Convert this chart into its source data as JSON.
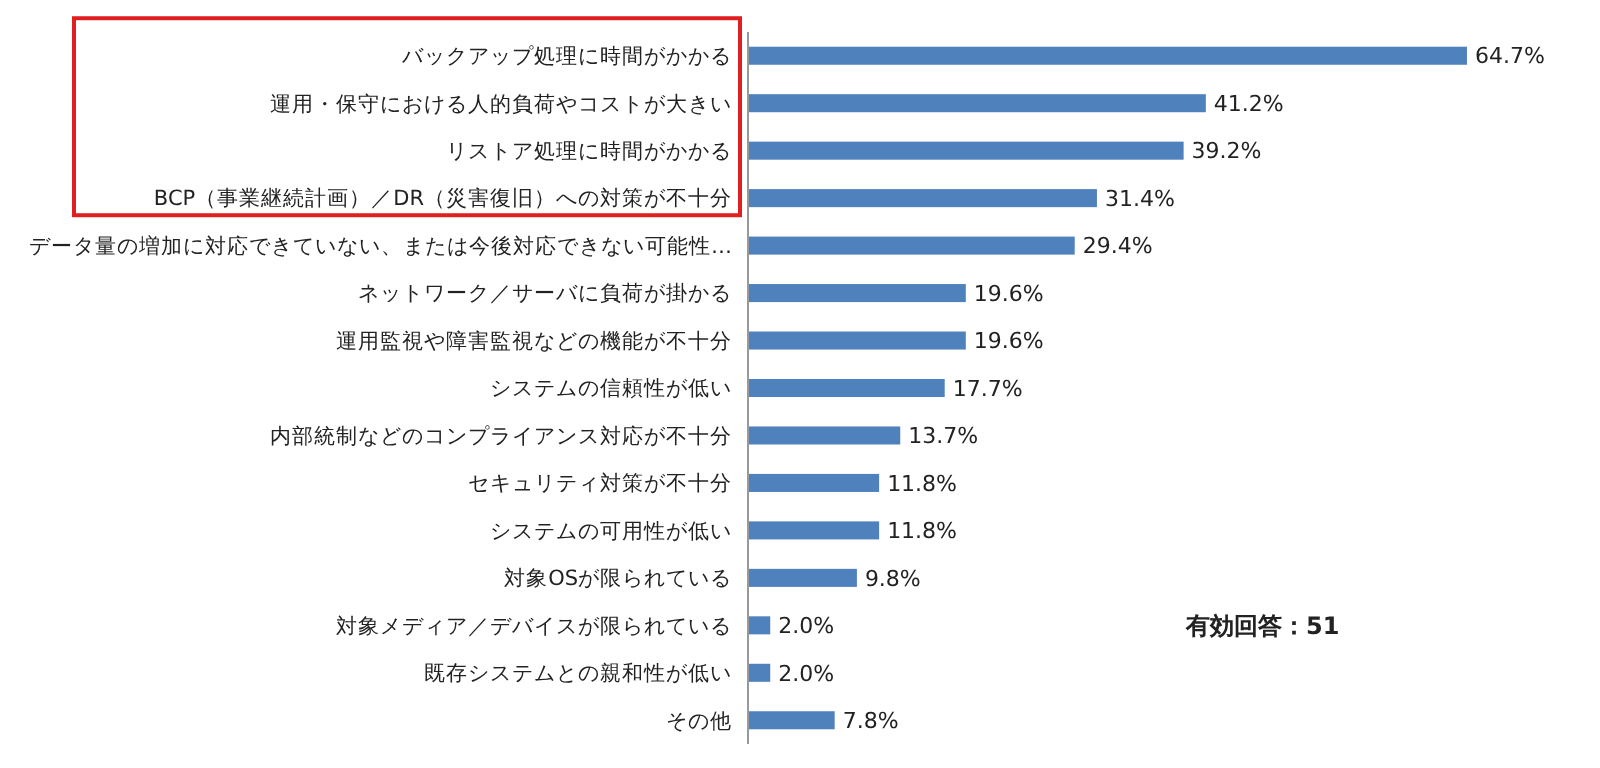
{
  "chart_data": {
    "type": "bar",
    "orientation": "horizontal",
    "categories": [
      "バックアップ処理に時間がかかる",
      "運用・保守における人的負荷やコストが大きい",
      "リストア処理に時間がかかる",
      "BCP（事業継続計画）／DR（災害復旧）への対策が不十分",
      "データ量の増加に対応できていない、または今後対応できない可能性…",
      "ネットワーク／サーバに負荷が掛かる",
      "運用監視や障害監視などの機能が不十分",
      "システムの信頼性が低い",
      "内部統制などのコンプライアンス対応が不十分",
      "セキュリティ対策が不十分",
      "システムの可用性が低い",
      "対象OSが限られている",
      "対象メディア／デバイスが限られている",
      "既存システムとの親和性が低い",
      "その他"
    ],
    "values": [
      64.7,
      41.2,
      39.2,
      31.4,
      29.4,
      19.6,
      19.6,
      17.7,
      13.7,
      11.8,
      11.8,
      9.8,
      2.0,
      2.0,
      7.8
    ],
    "value_labels": [
      "64.7%",
      "41.2%",
      "39.2%",
      "31.4%",
      "29.4%",
      "19.6%",
      "19.6%",
      "17.7%",
      "13.7%",
      "11.8%",
      "11.8%",
      "9.8%",
      "2.0%",
      "2.0%",
      "7.8%"
    ],
    "color": "#4f81bd",
    "annotations": [
      "有効回答：51"
    ]
  }
}
